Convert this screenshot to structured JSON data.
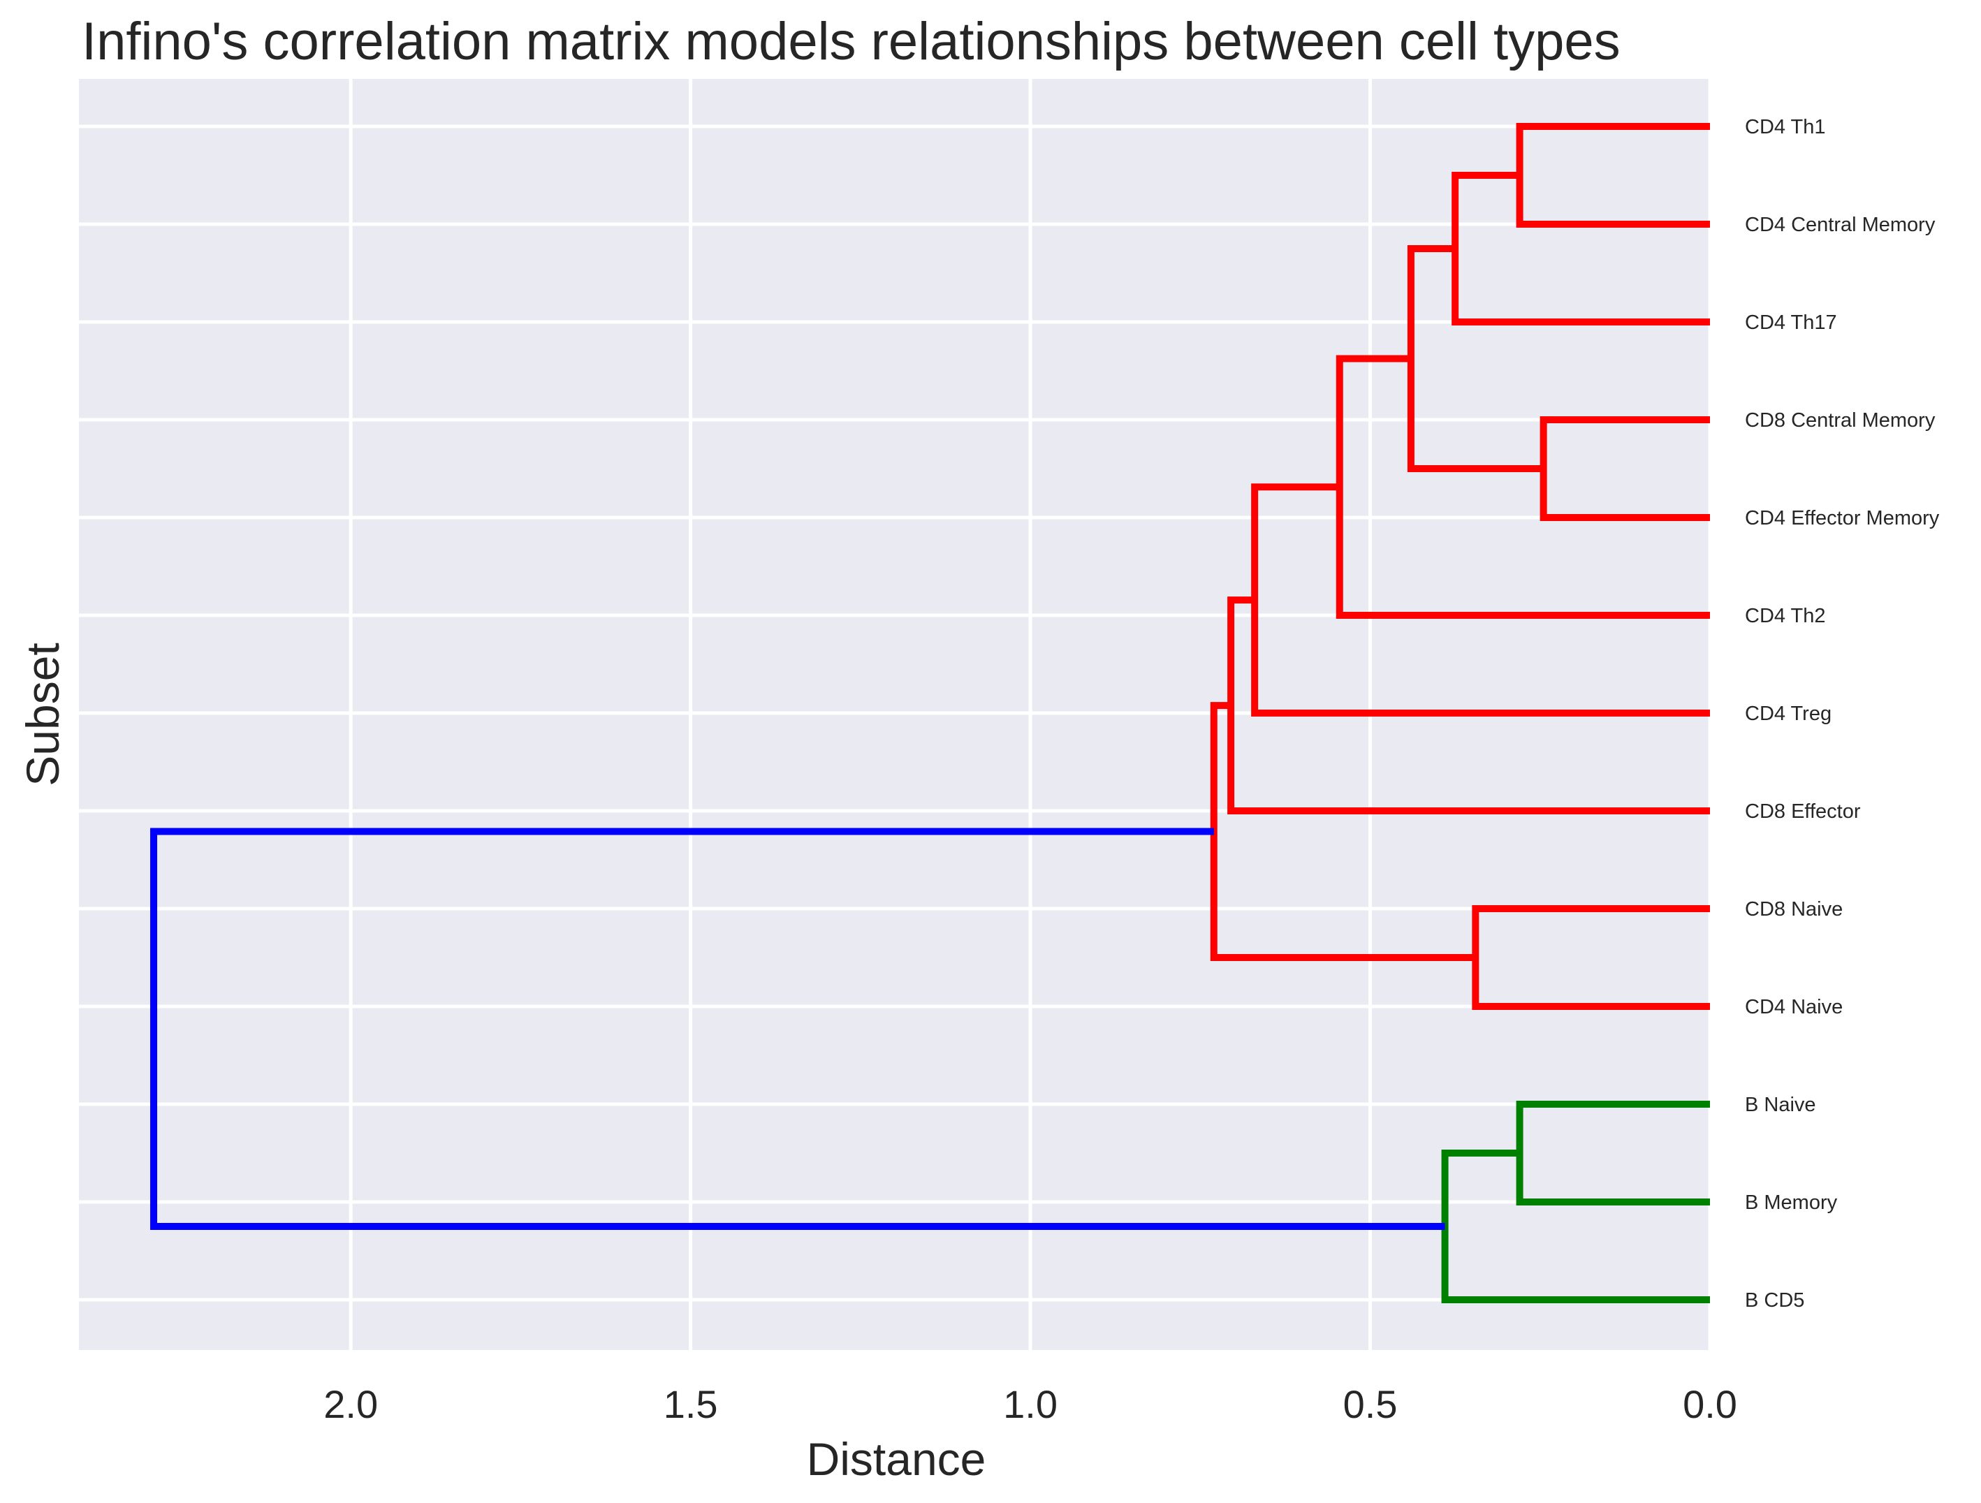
{
  "chart_data": {
    "type": "dendrogram",
    "title": "Infino's correlation matrix models relationships between cell types",
    "xlabel": "Distance",
    "ylabel": "Subset",
    "xlim": [
      2.4,
      0.0
    ],
    "x_inverted": true,
    "xticks": [
      2.0,
      1.5,
      1.0,
      0.5,
      0.0
    ],
    "xtick_labels": [
      "2.0",
      "1.5",
      "1.0",
      "0.5",
      "0.0"
    ],
    "grid": true,
    "style": "seaborn-darkgrid",
    "background_color": "#EAEAF2",
    "grid_color": "#FFFFFF",
    "leaves": [
      "CD4 Th1",
      "CD4 Central Memory",
      "CD4 Th17",
      "CD8 Central Memory",
      "CD4 Effector Memory",
      "CD4 Th2",
      "CD4 Treg",
      "CD8 Effector",
      "CD8 Naive",
      "CD4 Naive",
      "B Naive",
      "B Memory",
      "B CD5"
    ],
    "clusters": [
      {
        "id": "c1",
        "left": "CD4 Th1",
        "right": "CD4 Central Memory",
        "distance": 0.28,
        "color": "#FF0000"
      },
      {
        "id": "c2",
        "left": "c1",
        "right": "CD4 Th17",
        "distance": 0.375,
        "color": "#FF0000"
      },
      {
        "id": "c3",
        "left": "CD8 Central Memory",
        "right": "CD4 Effector Memory",
        "distance": 0.245,
        "color": "#FF0000"
      },
      {
        "id": "c4",
        "left": "c2",
        "right": "c3",
        "distance": 0.44,
        "color": "#FF0000"
      },
      {
        "id": "c5",
        "left": "c4",
        "right": "CD4 Th2",
        "distance": 0.545,
        "color": "#FF0000"
      },
      {
        "id": "c6",
        "left": "c5",
        "right": "CD4 Treg",
        "distance": 0.67,
        "color": "#FF0000"
      },
      {
        "id": "c7",
        "left": "c6",
        "right": "CD8 Effector",
        "distance": 0.705,
        "color": "#FF0000"
      },
      {
        "id": "c8",
        "left": "CD8 Naive",
        "right": "CD4 Naive",
        "distance": 0.345,
        "color": "#FF0000"
      },
      {
        "id": "c9",
        "left": "c7",
        "right": "c8",
        "distance": 0.73,
        "color": "#FF0000"
      },
      {
        "id": "c10",
        "left": "B Naive",
        "right": "B Memory",
        "distance": 0.28,
        "color": "#008000"
      },
      {
        "id": "c11",
        "left": "c10",
        "right": "B CD5",
        "distance": 0.39,
        "color": "#008000"
      },
      {
        "id": "c12",
        "left": "c9",
        "right": "c11",
        "distance": 2.29,
        "color": "#0000FF"
      }
    ]
  }
}
